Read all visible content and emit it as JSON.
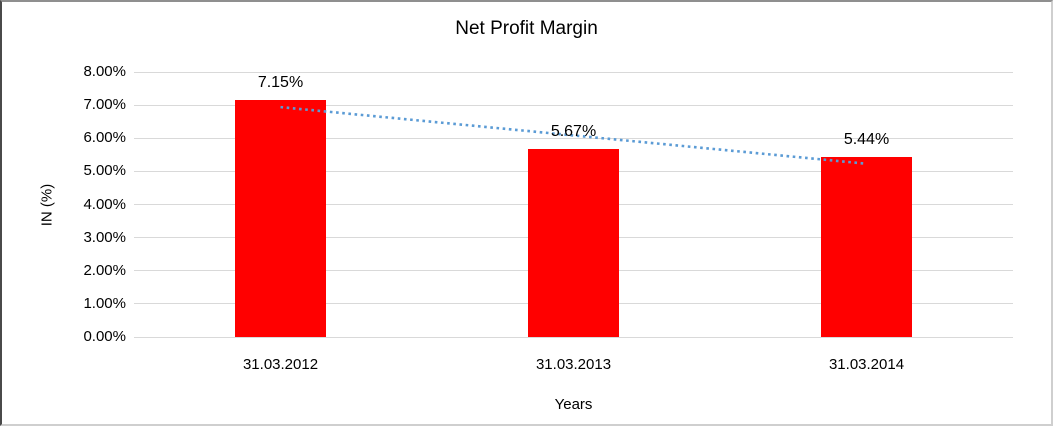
{
  "chart_data": {
    "type": "bar",
    "title": "Net Profit Margin",
    "xlabel": "Years",
    "ylabel": "IN (%)",
    "categories": [
      "31.03.2012",
      "31.03.2013",
      "31.03.2014"
    ],
    "values": [
      7.15,
      5.67,
      5.44
    ],
    "value_labels": [
      "7.15%",
      "5.67%",
      "5.44%"
    ],
    "ylim": [
      0,
      8
    ],
    "ytick_step": 1,
    "ytick_labels": [
      "0.00%",
      "1.00%",
      "2.00%",
      "3.00%",
      "4.00%",
      "5.00%",
      "6.00%",
      "7.00%",
      "8.00%"
    ],
    "grid": true,
    "legend": "none",
    "bar_color": "#ff0000",
    "gridline_color": "#d9d9d9",
    "text_color": "#000000",
    "trendline": {
      "type": "linear",
      "style": "dotted",
      "color": "#5b9bd5",
      "start_value": 6.94,
      "end_value": 5.23
    }
  }
}
